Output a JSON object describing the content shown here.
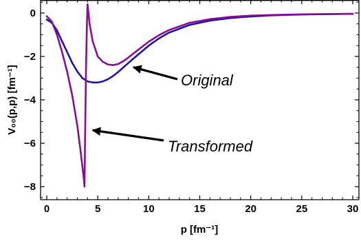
{
  "chart_data": {
    "type": "line",
    "xlabel": "p  [fm⁻¹]",
    "ylabel": "V₀₀(p,p) [fm⁻¹]",
    "xlim": [
      0,
      30
    ],
    "ylim": [
      -8.6,
      0.6
    ],
    "x_ticks": [
      0,
      5,
      10,
      15,
      20,
      25,
      30
    ],
    "y_ticks": [
      0,
      -2,
      -4,
      -6,
      -8
    ],
    "x_tick_labels": [
      "0",
      "5",
      "10",
      "15",
      "20",
      "25",
      "30"
    ],
    "y_tick_labels": [
      "0",
      "−2",
      "−4",
      "−6",
      "−8"
    ],
    "grid": false,
    "series": [
      {
        "name": "Original",
        "color": "#1a14a8",
        "x": [
          0,
          0.5,
          1.0,
          1.5,
          2.0,
          2.5,
          3.0,
          3.5,
          4.0,
          4.5,
          5.0,
          5.5,
          6.0,
          6.5,
          7.0,
          8.0,
          9.0,
          10.0,
          11.0,
          12.0,
          14.0,
          16.0,
          18.0,
          20.0,
          22.0,
          25.0,
          28.0,
          30.0
        ],
        "y": [
          -0.3,
          -0.45,
          -0.8,
          -1.3,
          -1.8,
          -2.3,
          -2.7,
          -3.0,
          -3.15,
          -3.2,
          -3.2,
          -3.15,
          -3.05,
          -2.9,
          -2.72,
          -2.3,
          -1.9,
          -1.5,
          -1.17,
          -0.9,
          -0.55,
          -0.35,
          -0.23,
          -0.16,
          -0.11,
          -0.07,
          -0.05,
          -0.04
        ]
      },
      {
        "name": "Transformed",
        "color": "#8b0a96",
        "x": [
          0,
          0.5,
          1.0,
          1.5,
          2.0,
          2.5,
          3.0,
          3.3,
          3.5,
          3.65,
          3.7,
          3.75,
          3.85,
          3.95,
          4.0,
          4.2,
          4.5,
          5.0,
          5.5,
          6.0,
          6.5,
          7.0,
          7.5,
          8.0,
          9.0,
          10.0,
          11.0,
          12.0,
          14.0,
          16.0,
          18.0,
          20.0,
          22.0,
          25.0,
          28.0,
          30.0
        ],
        "y": [
          -0.15,
          -0.4,
          -1.0,
          -1.8,
          -2.7,
          -3.8,
          -5.2,
          -6.3,
          -7.1,
          -7.7,
          -8.0,
          -6.0,
          -2.5,
          -0.3,
          0.4,
          -0.5,
          -1.3,
          -2.0,
          -2.25,
          -2.37,
          -2.4,
          -2.35,
          -2.22,
          -2.05,
          -1.68,
          -1.32,
          -1.02,
          -0.78,
          -0.45,
          -0.28,
          -0.18,
          -0.12,
          -0.09,
          -0.06,
          -0.045,
          -0.035
        ]
      }
    ],
    "annotations": [
      {
        "text": "Original",
        "arrow_to": [
          8.5,
          -2.5
        ]
      },
      {
        "text": "Transformed",
        "arrow_to": [
          4.5,
          -5.4
        ]
      }
    ]
  }
}
